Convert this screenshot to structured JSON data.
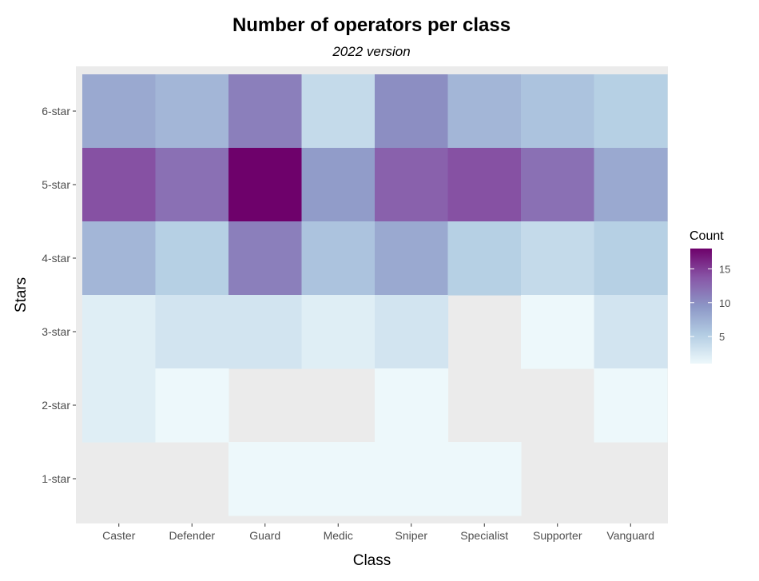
{
  "chart_data": {
    "type": "heatmap",
    "title": "Number of operators per class",
    "subtitle": "2022 version",
    "xlabel": "Class",
    "ylabel": "Stars",
    "x_categories": [
      "Caster",
      "Defender",
      "Guard",
      "Medic",
      "Sniper",
      "Specialist",
      "Supporter",
      "Vanguard"
    ],
    "y_categories": [
      "1-star",
      "2-star",
      "3-star",
      "4-star",
      "5-star",
      "6-star"
    ],
    "cells": [
      {
        "x": "Caster",
        "y": "6-star",
        "value": 8
      },
      {
        "x": "Defender",
        "y": "6-star",
        "value": 7
      },
      {
        "x": "Guard",
        "y": "6-star",
        "value": 11
      },
      {
        "x": "Medic",
        "y": "6-star",
        "value": 4
      },
      {
        "x": "Sniper",
        "y": "6-star",
        "value": 10
      },
      {
        "x": "Specialist",
        "y": "6-star",
        "value": 7
      },
      {
        "x": "Supporter",
        "y": "6-star",
        "value": 6
      },
      {
        "x": "Vanguard",
        "y": "6-star",
        "value": 5
      },
      {
        "x": "Caster",
        "y": "5-star",
        "value": 14
      },
      {
        "x": "Defender",
        "y": "5-star",
        "value": 12
      },
      {
        "x": "Guard",
        "y": "5-star",
        "value": 18
      },
      {
        "x": "Medic",
        "y": "5-star",
        "value": 9
      },
      {
        "x": "Sniper",
        "y": "5-star",
        "value": 13
      },
      {
        "x": "Specialist",
        "y": "5-star",
        "value": 14
      },
      {
        "x": "Supporter",
        "y": "5-star",
        "value": 12
      },
      {
        "x": "Vanguard",
        "y": "5-star",
        "value": 8
      },
      {
        "x": "Caster",
        "y": "4-star",
        "value": 7
      },
      {
        "x": "Defender",
        "y": "4-star",
        "value": 5
      },
      {
        "x": "Guard",
        "y": "4-star",
        "value": 11
      },
      {
        "x": "Medic",
        "y": "4-star",
        "value": 6
      },
      {
        "x": "Sniper",
        "y": "4-star",
        "value": 8
      },
      {
        "x": "Specialist",
        "y": "4-star",
        "value": 5
      },
      {
        "x": "Supporter",
        "y": "4-star",
        "value": 4
      },
      {
        "x": "Vanguard",
        "y": "4-star",
        "value": 5
      },
      {
        "x": "Caster",
        "y": "3-star",
        "value": 2
      },
      {
        "x": "Defender",
        "y": "3-star",
        "value": 3
      },
      {
        "x": "Guard",
        "y": "3-star",
        "value": 3
      },
      {
        "x": "Medic",
        "y": "3-star",
        "value": 2
      },
      {
        "x": "Sniper",
        "y": "3-star",
        "value": 3
      },
      {
        "x": "Supporter",
        "y": "3-star",
        "value": 1
      },
      {
        "x": "Vanguard",
        "y": "3-star",
        "value": 3
      },
      {
        "x": "Caster",
        "y": "2-star",
        "value": 2
      },
      {
        "x": "Defender",
        "y": "2-star",
        "value": 1
      },
      {
        "x": "Sniper",
        "y": "2-star",
        "value": 1
      },
      {
        "x": "Vanguard",
        "y": "2-star",
        "value": 1
      },
      {
        "x": "Guard",
        "y": "1-star",
        "value": 1
      },
      {
        "x": "Medic",
        "y": "1-star",
        "value": 1
      },
      {
        "x": "Sniper",
        "y": "1-star",
        "value": 1
      },
      {
        "x": "Specialist",
        "y": "1-star",
        "value": 1
      }
    ],
    "legend": {
      "title": "Count",
      "position": "right",
      "min": 1,
      "max": 18,
      "ticks": [
        5,
        10,
        15
      ]
    },
    "colors": {
      "panel_background": "#ebebeb",
      "scale": [
        "#edf8fb",
        "#b3cde3",
        "#8c96c6",
        "#8856a7",
        "#6e016b"
      ]
    },
    "grid": true
  }
}
